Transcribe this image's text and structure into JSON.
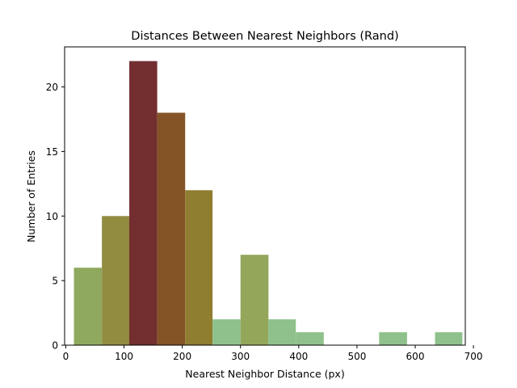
{
  "chart_data": {
    "type": "bar",
    "title": "Distances Between Nearest Neighbors (Rand)",
    "xlabel": "Nearest Neighbor Distance (px)",
    "ylabel": "Number of Entries",
    "xlim": [
      -2,
      686
    ],
    "ylim": [
      0,
      23.1
    ],
    "x_ticks": [
      0,
      100,
      200,
      300,
      400,
      500,
      600,
      700
    ],
    "y_ticks": [
      0,
      5,
      10,
      15,
      20
    ],
    "grid": false,
    "bins": [
      {
        "x0": 14,
        "x1": 62,
        "count": 6,
        "color": "#8faa5e"
      },
      {
        "x0": 62,
        "x1": 109,
        "count": 10,
        "color": "#928c40"
      },
      {
        "x0": 109,
        "x1": 157,
        "count": 22,
        "color": "#732f30"
      },
      {
        "x0": 157,
        "x1": 205,
        "count": 18,
        "color": "#845427"
      },
      {
        "x0": 205,
        "x1": 252,
        "count": 12,
        "color": "#8f7d30"
      },
      {
        "x0": 252,
        "x1": 300,
        "count": 2,
        "color": "#8fc18c"
      },
      {
        "x0": 300,
        "x1": 348,
        "count": 7,
        "color": "#93a65a"
      },
      {
        "x0": 348,
        "x1": 395,
        "count": 2,
        "color": "#8fc18c"
      },
      {
        "x0": 395,
        "x1": 443,
        "count": 1,
        "color": "#8fc18c"
      },
      {
        "x0": 443,
        "x1": 491,
        "count": 0,
        "color": "#8fc18c"
      },
      {
        "x0": 491,
        "x1": 538,
        "count": 0,
        "color": "#8fc18c"
      },
      {
        "x0": 538,
        "x1": 586,
        "count": 1,
        "color": "#8fc18c"
      },
      {
        "x0": 586,
        "x1": 634,
        "count": 0,
        "color": "#8fc18c"
      },
      {
        "x0": 634,
        "x1": 681,
        "count": 1,
        "color": "#8fc18c"
      }
    ]
  }
}
